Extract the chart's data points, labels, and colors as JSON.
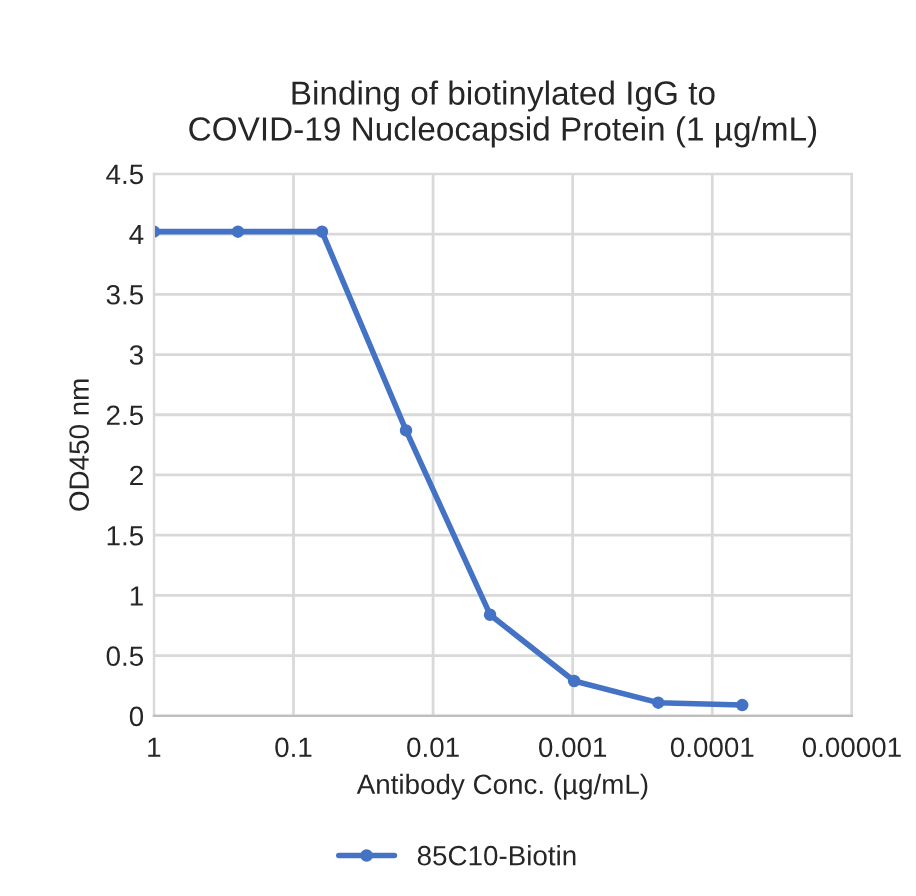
{
  "chart_data": {
    "type": "line",
    "title": "Binding of biotinylated IgG to\nCOVID-19 Nucleocapsid Protein (1 µg/mL)",
    "xlabel": "Antibody Conc. (µg/mL)",
    "ylabel": "OD450 nm",
    "x": [
      1,
      0.25,
      0.0625,
      0.015625,
      0.00390625,
      0.0009765625,
      0.000244,
      6.1e-05
    ],
    "series": [
      {
        "name": "85C10-Biotin",
        "color": "#4472c4",
        "values": [
          4.02,
          4.02,
          4.02,
          2.37,
          0.84,
          0.29,
          0.11,
          0.09
        ]
      }
    ],
    "log": "x",
    "xlim": [
      1,
      1e-05
    ],
    "xticks": [
      1,
      0.1,
      0.01,
      0.001,
      0.0001,
      {
        "value": 1e-05,
        "label": "0.00001"
      }
    ],
    "ylim": [
      0,
      4.5
    ],
    "yticks": [
      0,
      0.5,
      1,
      1.5,
      2,
      2.5,
      3,
      3.5,
      4,
      4.5
    ],
    "grid": true,
    "legend": "bottom",
    "marker": "circle",
    "line_style": "solid"
  }
}
